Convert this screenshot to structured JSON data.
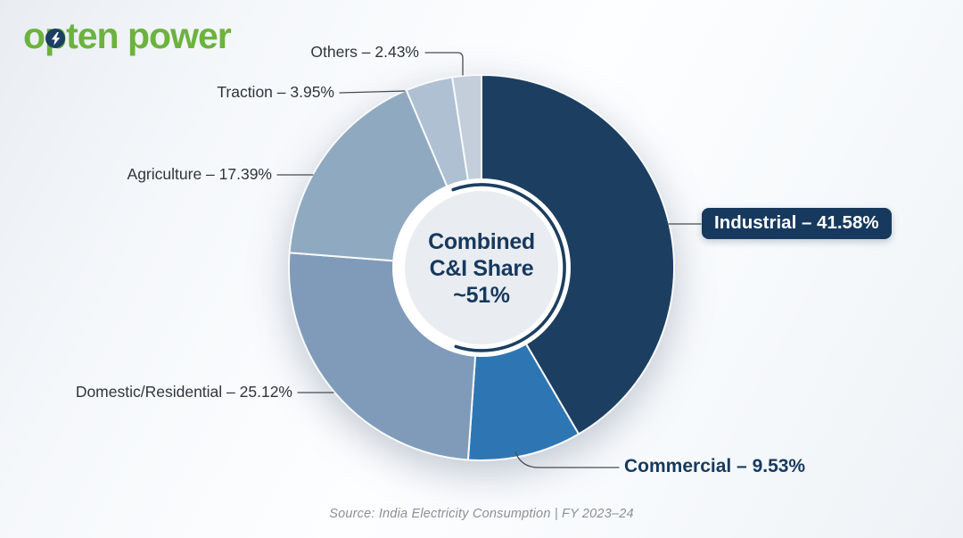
{
  "logo": {
    "part1": "o",
    "part2": "p",
    "part3": "ten power",
    "color": "#6CB33E",
    "bolt_icon": "lightning-bolt",
    "bolt_bg": "#1C3E61"
  },
  "colors": {
    "navy": "#17395E",
    "center_fill": "#E9EDF1",
    "arc_ring": "#1C3E61",
    "label_text": "#2F353C",
    "source_text": "#8A9098",
    "background_light": "#FDFEFF",
    "background_shade": "#E9EDF2"
  },
  "chart_data": {
    "type": "pie",
    "variant": "donut",
    "unit": "%",
    "direction": "clockwise",
    "start_angle_deg": 0,
    "legend": "none",
    "center_label": {
      "line1": "Combined",
      "line2": "C&I Share",
      "line3": "~51%"
    },
    "segments": [
      {
        "label": "Industrial",
        "value": 41.58,
        "display": "Industrial – 41.58%",
        "color": "#1C3E61"
      },
      {
        "label": "Commercial",
        "value": 9.53,
        "display": "Commercial – 9.53%",
        "color": "#2E76B3"
      },
      {
        "label": "Domestic/Residential",
        "value": 25.12,
        "display": "Domestic/Residential – 25.12%",
        "color": "#7F9BB9"
      },
      {
        "label": "Agriculture",
        "value": 17.39,
        "display": "Agriculture – 17.39%",
        "color": "#8FA9C1"
      },
      {
        "label": "Traction",
        "value": 3.95,
        "display": "Traction – 3.95%",
        "color": "#AEC0D2"
      },
      {
        "label": "Others",
        "value": 2.43,
        "display": "Others – 2.43%",
        "color": "#C4CEDB"
      }
    ],
    "source": "Source: India Electricity Consumption | FY 2023–24"
  }
}
